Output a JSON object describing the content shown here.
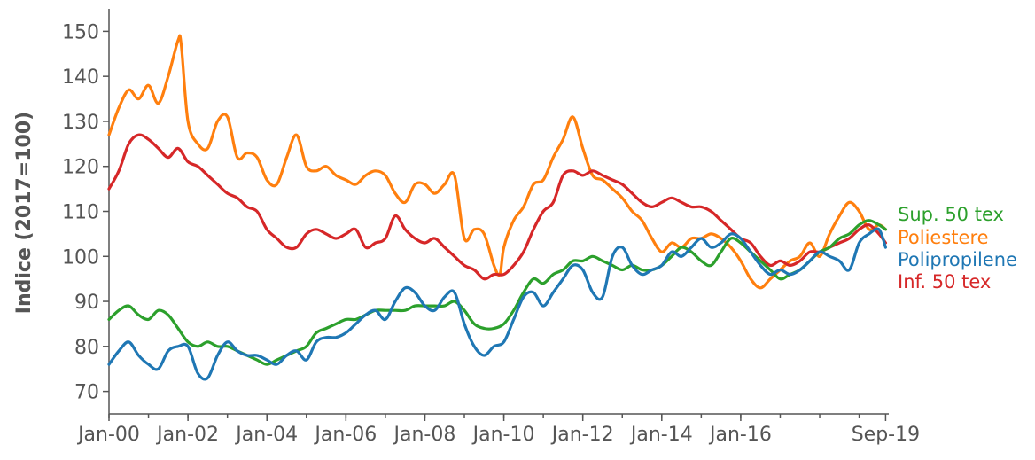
{
  "chart_data": {
    "type": "line",
    "title": "",
    "xlabel": "",
    "ylabel": "Indice (2017=100)",
    "ylim": [
      65,
      155
    ],
    "xlim": [
      2000.0,
      2019.75
    ],
    "yticks": [
      70,
      80,
      90,
      100,
      110,
      120,
      130,
      140,
      150
    ],
    "xticks": [
      {
        "label": "Jan-00",
        "x": 2000.0
      },
      {
        "label": "Jan-02",
        "x": 2002.0
      },
      {
        "label": "Jan-04",
        "x": 2004.0
      },
      {
        "label": "Jan-06",
        "x": 2006.0
      },
      {
        "label": "Jan-08",
        "x": 2008.0
      },
      {
        "label": "Jan-10",
        "x": 2010.0
      },
      {
        "label": "Jan-12",
        "x": 2012.0
      },
      {
        "label": "Jan-14",
        "x": 2014.0
      },
      {
        "label": "Jan-16",
        "x": 2016.0
      },
      {
        "label": "Sep-19",
        "x": 2019.67
      }
    ],
    "grid": false,
    "legend_position": "right",
    "series": [
      {
        "name": "Poliestere",
        "color": "#ff7f0e",
        "x": [
          2000.0,
          2000.25,
          2000.5,
          2000.75,
          2001.0,
          2001.25,
          2001.5,
          2001.75,
          2001.83,
          2002.0,
          2002.25,
          2002.5,
          2002.75,
          2003.0,
          2003.25,
          2003.5,
          2003.75,
          2004.0,
          2004.25,
          2004.5,
          2004.75,
          2005.0,
          2005.25,
          2005.5,
          2005.75,
          2006.0,
          2006.25,
          2006.5,
          2006.75,
          2007.0,
          2007.25,
          2007.5,
          2007.75,
          2008.0,
          2008.25,
          2008.5,
          2008.75,
          2009.0,
          2009.25,
          2009.5,
          2009.75,
          2009.9,
          2010.0,
          2010.25,
          2010.5,
          2010.75,
          2011.0,
          2011.25,
          2011.5,
          2011.75,
          2012.0,
          2012.25,
          2012.5,
          2012.75,
          2013.0,
          2013.25,
          2013.5,
          2013.75,
          2014.0,
          2014.25,
          2014.5,
          2014.75,
          2015.0,
          2015.25,
          2015.5,
          2015.75,
          2016.0,
          2016.25,
          2016.5,
          2016.75,
          2017.0,
          2017.25,
          2017.5,
          2017.75,
          2018.0,
          2018.25,
          2018.5,
          2018.75,
          2019.0,
          2019.25,
          2019.5,
          2019.67
        ],
        "values": [
          127,
          133,
          137,
          135,
          138,
          134,
          140,
          148,
          147,
          130,
          125,
          124,
          130,
          131,
          122,
          123,
          122,
          117,
          116,
          122,
          127,
          120,
          119,
          120,
          118,
          117,
          116,
          118,
          119,
          118,
          114,
          112,
          116,
          116,
          114,
          116,
          118,
          104,
          106,
          105,
          98,
          96,
          102,
          108,
          111,
          116,
          117,
          122,
          126,
          131,
          124,
          118,
          117,
          115,
          113,
          110,
          108,
          104,
          101,
          103,
          102,
          104,
          104,
          105,
          104,
          102,
          99,
          95,
          93,
          95,
          97,
          99,
          100,
          103,
          100,
          105,
          109,
          112,
          110,
          106,
          107,
          106
        ]
      },
      {
        "name": "Inf. 50 tex",
        "color": "#d62728",
        "x": [
          2000.0,
          2000.25,
          2000.5,
          2000.75,
          2001.0,
          2001.25,
          2001.5,
          2001.75,
          2002.0,
          2002.25,
          2002.5,
          2002.75,
          2003.0,
          2003.25,
          2003.5,
          2003.75,
          2004.0,
          2004.25,
          2004.5,
          2004.75,
          2005.0,
          2005.25,
          2005.5,
          2005.75,
          2006.0,
          2006.25,
          2006.5,
          2006.75,
          2007.0,
          2007.25,
          2007.5,
          2007.75,
          2008.0,
          2008.25,
          2008.5,
          2008.75,
          2009.0,
          2009.25,
          2009.5,
          2009.75,
          2010.0,
          2010.25,
          2010.5,
          2010.75,
          2011.0,
          2011.25,
          2011.5,
          2011.75,
          2012.0,
          2012.25,
          2012.5,
          2012.75,
          2013.0,
          2013.25,
          2013.5,
          2013.75,
          2014.0,
          2014.25,
          2014.5,
          2014.75,
          2015.0,
          2015.25,
          2015.5,
          2015.75,
          2016.0,
          2016.25,
          2016.5,
          2016.75,
          2017.0,
          2017.25,
          2017.5,
          2017.75,
          2018.0,
          2018.25,
          2018.5,
          2018.75,
          2019.0,
          2019.25,
          2019.5,
          2019.67
        ],
        "values": [
          115,
          119,
          125,
          127,
          126,
          124,
          122,
          124,
          121,
          120,
          118,
          116,
          114,
          113,
          111,
          110,
          106,
          104,
          102,
          102,
          105,
          106,
          105,
          104,
          105,
          106,
          102,
          103,
          104,
          109,
          106,
          104,
          103,
          104,
          102,
          100,
          98,
          97,
          95,
          96,
          96,
          98,
          101,
          106,
          110,
          112,
          118,
          119,
          118,
          119,
          118,
          117,
          116,
          114,
          112,
          111,
          112,
          113,
          112,
          111,
          111,
          110,
          108,
          106,
          104,
          103,
          100,
          98,
          99,
          98,
          99,
          101,
          101,
          102,
          103,
          104,
          106,
          107,
          105,
          103
        ]
      },
      {
        "name": "Sup. 50 tex",
        "color": "#2ca02c",
        "x": [
          2000.0,
          2000.25,
          2000.5,
          2000.75,
          2001.0,
          2001.25,
          2001.5,
          2001.75,
          2002.0,
          2002.25,
          2002.5,
          2002.75,
          2003.0,
          2003.25,
          2003.5,
          2003.75,
          2004.0,
          2004.25,
          2004.5,
          2004.75,
          2005.0,
          2005.25,
          2005.5,
          2005.75,
          2006.0,
          2006.25,
          2006.5,
          2006.75,
          2007.0,
          2007.25,
          2007.5,
          2007.75,
          2008.0,
          2008.25,
          2008.5,
          2008.75,
          2009.0,
          2009.25,
          2009.5,
          2009.75,
          2010.0,
          2010.25,
          2010.5,
          2010.75,
          2011.0,
          2011.25,
          2011.5,
          2011.75,
          2012.0,
          2012.25,
          2012.5,
          2012.75,
          2013.0,
          2013.25,
          2013.5,
          2013.75,
          2014.0,
          2014.25,
          2014.5,
          2014.75,
          2015.0,
          2015.25,
          2015.5,
          2015.75,
          2016.0,
          2016.25,
          2016.5,
          2016.75,
          2017.0,
          2017.25,
          2017.5,
          2017.75,
          2018.0,
          2018.25,
          2018.5,
          2018.75,
          2019.0,
          2019.25,
          2019.5,
          2019.67
        ],
        "values": [
          86,
          88,
          89,
          87,
          86,
          88,
          87,
          84,
          81,
          80,
          81,
          80,
          80,
          79,
          78,
          77,
          76,
          77,
          78,
          79,
          80,
          83,
          84,
          85,
          86,
          86,
          87,
          88,
          88,
          88,
          88,
          89,
          89,
          89,
          89,
          90,
          88,
          85,
          84,
          84,
          85,
          88,
          92,
          95,
          94,
          96,
          97,
          99,
          99,
          100,
          99,
          98,
          97,
          98,
          97,
          97,
          98,
          100,
          102,
          101,
          99,
          98,
          101,
          104,
          103,
          101,
          99,
          97,
          95,
          96,
          97,
          99,
          101,
          102,
          104,
          105,
          107,
          108,
          107,
          106
        ]
      },
      {
        "name": "Polipropilene",
        "color": "#1f77b4",
        "x": [
          2000.0,
          2000.25,
          2000.5,
          2000.75,
          2001.0,
          2001.25,
          2001.5,
          2001.75,
          2002.0,
          2002.25,
          2002.5,
          2002.75,
          2003.0,
          2003.25,
          2003.5,
          2003.75,
          2004.0,
          2004.25,
          2004.5,
          2004.75,
          2005.0,
          2005.25,
          2005.5,
          2005.75,
          2006.0,
          2006.25,
          2006.5,
          2006.75,
          2007.0,
          2007.25,
          2007.5,
          2007.75,
          2008.0,
          2008.25,
          2008.5,
          2008.75,
          2009.0,
          2009.25,
          2009.5,
          2009.75,
          2010.0,
          2010.25,
          2010.5,
          2010.75,
          2011.0,
          2011.25,
          2011.5,
          2011.75,
          2012.0,
          2012.25,
          2012.5,
          2012.75,
          2013.0,
          2013.25,
          2013.5,
          2013.75,
          2014.0,
          2014.25,
          2014.5,
          2014.75,
          2015.0,
          2015.25,
          2015.5,
          2015.75,
          2016.0,
          2016.25,
          2016.5,
          2016.75,
          2017.0,
          2017.25,
          2017.5,
          2017.75,
          2018.0,
          2018.25,
          2018.5,
          2018.75,
          2019.0,
          2019.25,
          2019.5,
          2019.67
        ],
        "values": [
          76,
          79,
          81,
          78,
          76,
          75,
          79,
          80,
          80,
          74,
          73,
          78,
          81,
          79,
          78,
          78,
          77,
          76,
          78,
          79,
          77,
          81,
          82,
          82,
          83,
          85,
          87,
          88,
          86,
          90,
          93,
          92,
          89,
          88,
          91,
          92,
          85,
          80,
          78,
          80,
          81,
          86,
          91,
          92,
          89,
          92,
          95,
          98,
          97,
          92,
          91,
          100,
          102,
          98,
          96,
          97,
          98,
          101,
          100,
          102,
          104,
          102,
          103,
          105,
          104,
          101,
          98,
          96,
          97,
          96,
          97,
          99,
          101,
          100,
          99,
          97,
          103,
          105,
          106,
          102
        ]
      }
    ],
    "legend": [
      {
        "name": "Sup. 50 tex",
        "color": "#2ca02c"
      },
      {
        "name": "Poliestere",
        "color": "#ff7f0e"
      },
      {
        "name": "Polipropilene",
        "color": "#1f77b4"
      },
      {
        "name": "Inf. 50 tex",
        "color": "#d62728"
      }
    ]
  }
}
